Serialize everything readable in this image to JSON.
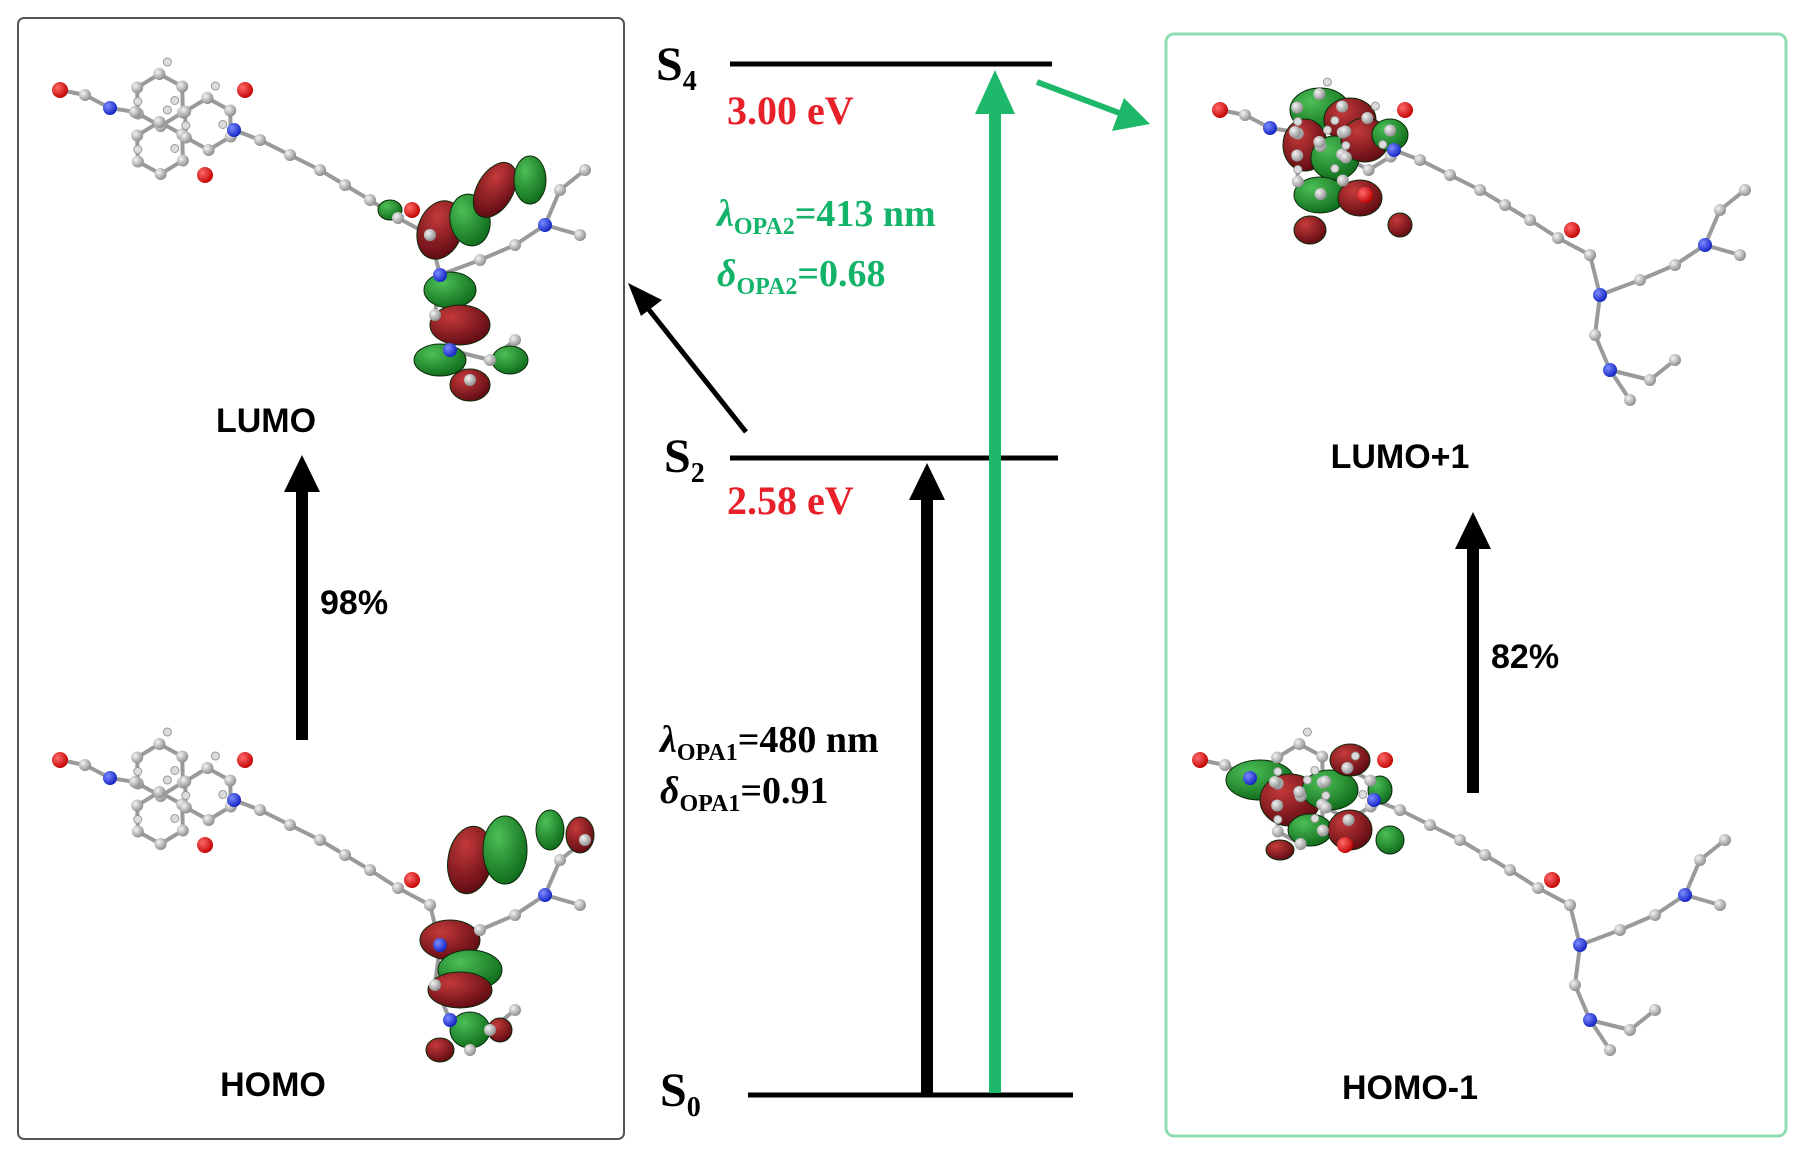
{
  "left_panel": {
    "upper_orbital": "LUMO",
    "lower_orbital": "HOMO",
    "contribution": "98%"
  },
  "right_panel": {
    "upper_orbital": "LUMO+1",
    "lower_orbital": "HOMO-1",
    "contribution": "82%"
  },
  "levels": {
    "s4": {
      "letter": "S",
      "sub": "4",
      "energy": "3.00 eV"
    },
    "s2": {
      "letter": "S",
      "sub": "2",
      "energy": "2.58 eV"
    },
    "s0": {
      "letter": "S",
      "sub": "0"
    }
  },
  "opa2": {
    "lambda_sym": "λ",
    "lambda_sub": "OPA2",
    "lambda_val": "=413 nm",
    "delta_sym": "δ",
    "delta_sub": "OPA2",
    "delta_val": "=0.68"
  },
  "opa1": {
    "lambda_sym": "λ",
    "lambda_sub": "OPA1",
    "lambda_val": "=480 nm",
    "delta_sym": "δ",
    "delta_sub": "OPA1",
    "delta_val": "=0.91"
  },
  "colors": {
    "black": "#000000",
    "green_transition": "#1db86a",
    "green_text": "#14b36a",
    "red_energy": "#e8202a",
    "lobe_green": "#1f8f2e",
    "lobe_red": "#8e1420",
    "right_panel_border": "#8fdcb0",
    "left_panel_border": "#555555"
  }
}
